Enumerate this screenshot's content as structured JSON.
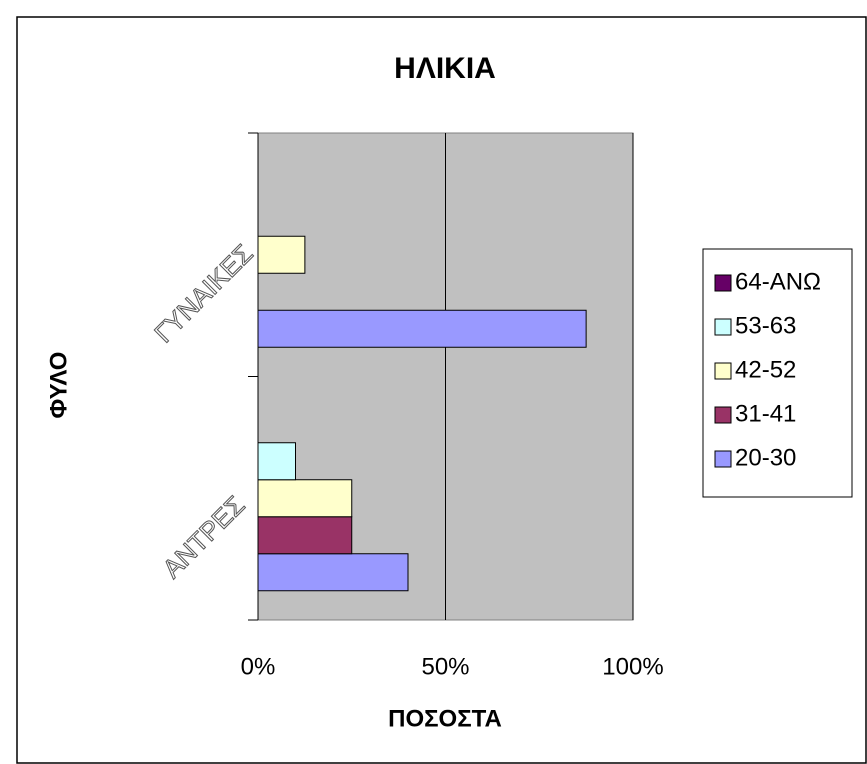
{
  "chart_data": {
    "type": "bar",
    "orientation": "horizontal",
    "title": "ΗΛΙΚΙΑ",
    "x_label": "ΠΟΣΟΣΤΑ",
    "y_label": "ΦΥΛΟ",
    "categories": [
      "ΑΝΤΡΕΣ",
      "ΓΥΝΑΙΚΕΣ"
    ],
    "series": [
      {
        "name": "20-30",
        "color": "#9999ff",
        "values": [
          40,
          87.5
        ]
      },
      {
        "name": "31-41",
        "color": "#993366",
        "values": [
          25,
          0
        ]
      },
      {
        "name": "42-52",
        "color": "#ffffcc",
        "values": [
          25,
          12.5
        ]
      },
      {
        "name": "53-63",
        "color": "#ccffff",
        "values": [
          10,
          0
        ]
      },
      {
        "name": "64-ΑΝΩ",
        "color": "#660066",
        "values": [
          0,
          0
        ]
      }
    ],
    "xlim": [
      0,
      100
    ],
    "xticks": [
      {
        "value": 0,
        "label": "0%"
      },
      {
        "value": 50,
        "label": "50%"
      },
      {
        "value": 100,
        "label": "100%"
      }
    ],
    "grid": true,
    "legend": "right"
  }
}
